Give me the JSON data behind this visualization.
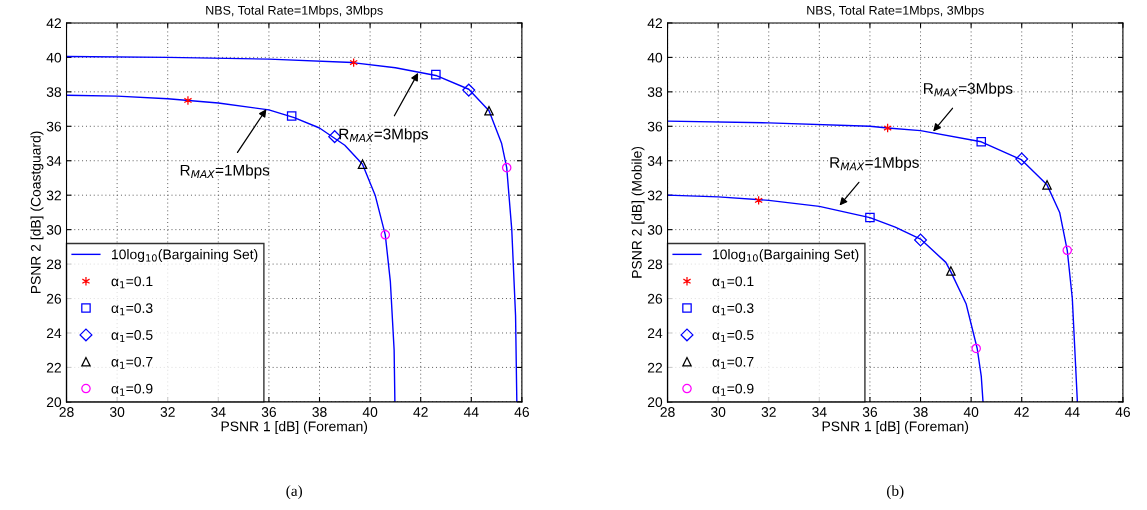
{
  "chart_data": [
    {
      "type": "line",
      "title": "NBS, Total Rate=1Mbps, 3Mbps",
      "xlabel": "PSNR 1 [dB] (Foreman)",
      "ylabel": "PSNR 2 [dB] (Coastguard)",
      "xlim": [
        28,
        46
      ],
      "xticks": [
        28,
        30,
        32,
        34,
        36,
        38,
        40,
        42,
        44,
        46
      ],
      "ylim": [
        20,
        42
      ],
      "yticks": [
        20,
        22,
        24,
        26,
        28,
        30,
        32,
        34,
        36,
        38,
        40,
        42
      ],
      "grid": true,
      "legend": "bottom left",
      "line_style": "solid",
      "series": [
        {
          "name": "10log$_{10}$(Bargaining Set)",
          "color": "#0000ff",
          "marker": "none",
          "x": [
            28,
            30,
            32,
            34,
            36,
            37,
            38,
            39,
            39.7,
            40.2,
            40.6,
            40.8,
            40.95,
            40.98
          ],
          "values": [
            37.8,
            37.75,
            37.6,
            37.35,
            36.95,
            36.5,
            35.9,
            34.9,
            33.8,
            32,
            29.7,
            27,
            23,
            20
          ]
        },
        {
          "color": "#0000ff",
          "marker": "none",
          "x": [
            28,
            32,
            36,
            39.3,
            41,
            42.6,
            43.9,
            44.7,
            45.2,
            45.4,
            45.6,
            45.75,
            45.8
          ],
          "values": [
            40.05,
            40,
            39.9,
            39.7,
            39.4,
            38.95,
            38.15,
            36.9,
            35,
            33.6,
            30,
            25,
            20
          ]
        },
        {
          "type": "scatter",
          "name": "α$_{1}$=0.1",
          "color": "#ff0000",
          "marker": "cross",
          "x": [
            32.8,
            39.35
          ],
          "values": [
            37.5,
            39.7
          ]
        },
        {
          "type": "scatter",
          "name": "α$_{1}$=0.3",
          "color": "#0000ff",
          "marker": "square",
          "x": [
            36.9,
            42.6
          ],
          "values": [
            36.6,
            39.0
          ]
        },
        {
          "type": "scatter",
          "name": "α$_{1}$=0.5",
          "color": "#0000ff",
          "marker": "diamond",
          "x": [
            38.6,
            43.9
          ],
          "values": [
            35.4,
            38.1
          ]
        },
        {
          "type": "scatter",
          "name": "α$_{1}$=0.7",
          "color": "#000000",
          "marker": "triangle",
          "x": [
            39.7,
            44.7
          ],
          "values": [
            33.8,
            36.9
          ]
        },
        {
          "type": "scatter",
          "name": "α$_{1}$=0.9",
          "color": "#ff00ff",
          "marker": "circle",
          "x": [
            40.6,
            45.4
          ],
          "values": [
            29.7,
            33.6
          ]
        }
      ],
      "annotations": [
        {
          "text": "R$_{MAX}$=1Mbps",
          "x": 35.9,
          "y": 37.0
        },
        {
          "text": "R$_{MAX}$=3Mbps",
          "x": 41.9,
          "y": 39.1
        },
        "(a)"
      ]
    },
    {
      "type": "line",
      "title": "NBS, Total Rate=1Mbps, 3Mbps",
      "xlabel": "PSNR 1 [dB] (Foreman)",
      "ylabel": "PSNR 2 [dB] (Mobile)",
      "xlim": [
        28,
        46
      ],
      "xticks": [
        28,
        30,
        32,
        34,
        36,
        38,
        40,
        42,
        44,
        46
      ],
      "ylim": [
        20,
        42
      ],
      "yticks": [
        20,
        22,
        24,
        26,
        28,
        30,
        32,
        34,
        36,
        38,
        40,
        42
      ],
      "grid": true,
      "legend": "bottom left",
      "line_style": "solid",
      "series": [
        {
          "name": "10log$_{10}$(Bargaining Set)",
          "color": "#0000ff",
          "marker": "none",
          "x": [
            28,
            30,
            32,
            34,
            36,
            37,
            38,
            39,
            39.2,
            39.8,
            40.24,
            40.4,
            40.47
          ],
          "values": [
            32,
            31.9,
            31.7,
            31.35,
            30.7,
            30.15,
            29.45,
            28.1,
            27.55,
            25.7,
            23.1,
            21.5,
            20
          ]
        },
        {
          "color": "#0000ff",
          "marker": "none",
          "x": [
            28,
            32,
            36,
            36.7,
            38,
            40.4,
            42,
            43,
            43.5,
            43.8,
            44,
            44.1,
            44.2
          ],
          "values": [
            36.3,
            36.2,
            36,
            35.9,
            35.75,
            35.1,
            34.05,
            32.6,
            31,
            28.8,
            26,
            23,
            20
          ]
        },
        {
          "type": "scatter",
          "name": "α$_{1}$=0.1",
          "color": "#ff0000",
          "marker": "cross",
          "x": [
            31.6,
            36.7
          ],
          "values": [
            31.7,
            35.9
          ]
        },
        {
          "type": "scatter",
          "name": "α$_{1}$=0.3",
          "color": "#0000ff",
          "marker": "square",
          "x": [
            36.0,
            40.4
          ],
          "values": [
            30.7,
            35.1
          ]
        },
        {
          "type": "scatter",
          "name": "α$_{1}$=0.5",
          "color": "#0000ff",
          "marker": "diamond",
          "x": [
            38.0,
            42.0
          ],
          "values": [
            29.4,
            34.1
          ]
        },
        {
          "type": "scatter",
          "name": "α$_{1}$=0.7",
          "color": "#000000",
          "marker": "triangle",
          "x": [
            39.2,
            43.0
          ],
          "values": [
            27.6,
            32.6
          ]
        },
        {
          "type": "scatter",
          "name": "α$_{1}$=0.9",
          "color": "#ff00ff",
          "marker": "circle",
          "x": [
            40.2,
            43.8
          ],
          "values": [
            23.1,
            28.8
          ]
        }
      ],
      "annotations": [
        {
          "text": "R$_{MAX}$=1Mbps",
          "x": 34.8,
          "y": 31.4
        },
        {
          "text": "R$_{MAX}$=3Mbps",
          "x": 38.5,
          "y": 35.7
        },
        "(b)"
      ]
    }
  ]
}
